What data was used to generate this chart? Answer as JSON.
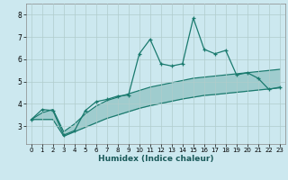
{
  "xlabel": "Humidex (Indice chaleur)",
  "x_values": [
    0,
    1,
    2,
    3,
    4,
    5,
    6,
    7,
    8,
    9,
    10,
    11,
    12,
    13,
    14,
    15,
    16,
    17,
    18,
    19,
    20,
    21,
    22,
    23
  ],
  "line_main": [
    3.3,
    3.75,
    3.7,
    2.6,
    2.8,
    3.7,
    4.1,
    4.2,
    4.35,
    4.4,
    6.25,
    6.9,
    5.8,
    5.7,
    5.8,
    7.85,
    6.45,
    6.25,
    6.4,
    5.3,
    5.4,
    5.15,
    4.65,
    4.75
  ],
  "line_upper": [
    3.3,
    3.6,
    3.75,
    2.75,
    3.1,
    3.55,
    3.9,
    4.15,
    4.3,
    4.45,
    4.6,
    4.75,
    4.85,
    4.95,
    5.05,
    5.15,
    5.2,
    5.25,
    5.3,
    5.35,
    5.4,
    5.45,
    5.5,
    5.55
  ],
  "line_lower": [
    3.3,
    3.3,
    3.3,
    2.55,
    2.75,
    2.95,
    3.15,
    3.35,
    3.5,
    3.65,
    3.8,
    3.92,
    4.02,
    4.12,
    4.22,
    4.3,
    4.38,
    4.42,
    4.47,
    4.52,
    4.57,
    4.62,
    4.67,
    4.72
  ],
  "color": "#1a7a6e",
  "bg_color": "#cce8ef",
  "grid_color": "#b0cccc",
  "ylim": [
    2.2,
    8.5
  ],
  "xlim": [
    -0.5,
    23.5
  ],
  "yticks": [
    3,
    4,
    5,
    6,
    7,
    8
  ],
  "xticks": [
    0,
    1,
    2,
    3,
    4,
    5,
    6,
    7,
    8,
    9,
    10,
    11,
    12,
    13,
    14,
    15,
    16,
    17,
    18,
    19,
    20,
    21,
    22,
    23
  ]
}
